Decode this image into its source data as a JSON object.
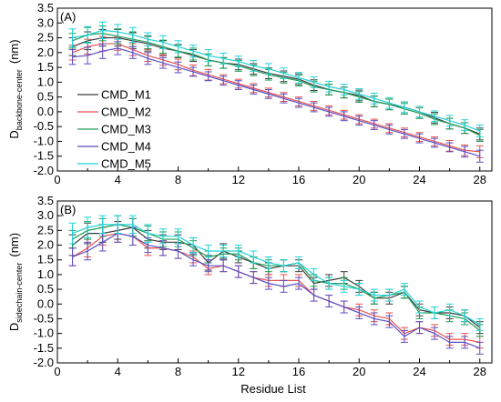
{
  "colors": {
    "CMD_M1": "#3a3a3a",
    "CMD_M2": "#e8524f",
    "CMD_M3": "#1f9e57",
    "CMD_M4": "#5a4fc4",
    "CMD_M5": "#22d2d8"
  },
  "chart_data": [
    {
      "type": "line",
      "panel_label": "(A)",
      "ylabel_main": "D",
      "ylabel_sub": "backbone-center",
      "ylabel_unit": "(nm)",
      "xlabel": "",
      "xlim": [
        0,
        28.8
      ],
      "ylim": [
        -2.0,
        3.5
      ],
      "xticks": [
        0,
        4,
        8,
        12,
        16,
        20,
        24,
        28
      ],
      "yticks": [
        -2.0,
        -1.5,
        -1.0,
        -0.5,
        0.0,
        0.5,
        1.0,
        1.5,
        2.0,
        2.5,
        3.0,
        3.5
      ],
      "legend_position": "left",
      "x": [
        1,
        2,
        3,
        4,
        5,
        6,
        7,
        8,
        9,
        10,
        11,
        12,
        13,
        14,
        15,
        16,
        17,
        18,
        19,
        20,
        21,
        22,
        23,
        24,
        25,
        26,
        27,
        28
      ],
      "series": [
        {
          "name": "CMD_M1",
          "values": [
            2.2,
            2.4,
            2.5,
            2.5,
            2.4,
            2.3,
            2.15,
            2.05,
            1.9,
            1.75,
            1.65,
            1.6,
            1.45,
            1.3,
            1.2,
            1.1,
            0.9,
            0.75,
            0.65,
            0.55,
            0.35,
            0.25,
            0.15,
            0.0,
            -0.2,
            -0.4,
            -0.55,
            -0.75
          ],
          "err": [
            0.3,
            0.3,
            0.28,
            0.28,
            0.27,
            0.25,
            0.25,
            0.22,
            0.2,
            0.2,
            0.18,
            0.18,
            0.18,
            0.18,
            0.18,
            0.18,
            0.18,
            0.18,
            0.18,
            0.18,
            0.18,
            0.18,
            0.18,
            0.18,
            0.18,
            0.18,
            0.18,
            0.2
          ]
        },
        {
          "name": "CMD_M2",
          "values": [
            2.0,
            2.2,
            2.3,
            2.3,
            2.1,
            1.9,
            1.75,
            1.6,
            1.4,
            1.25,
            1.1,
            0.95,
            0.8,
            0.65,
            0.5,
            0.35,
            0.2,
            0.05,
            -0.1,
            -0.25,
            -0.4,
            -0.55,
            -0.7,
            -0.85,
            -1.0,
            -1.15,
            -1.3,
            -1.35
          ],
          "err": [
            0.25,
            0.25,
            0.25,
            0.22,
            0.2,
            0.2,
            0.18,
            0.18,
            0.18,
            0.18,
            0.15,
            0.15,
            0.15,
            0.15,
            0.15,
            0.15,
            0.15,
            0.15,
            0.15,
            0.15,
            0.15,
            0.15,
            0.15,
            0.15,
            0.15,
            0.18,
            0.18,
            0.2
          ]
        },
        {
          "name": "CMD_M3",
          "values": [
            2.4,
            2.6,
            2.65,
            2.55,
            2.45,
            2.35,
            2.2,
            2.05,
            1.95,
            1.75,
            1.65,
            1.55,
            1.4,
            1.25,
            1.15,
            1.05,
            0.85,
            0.75,
            0.65,
            0.5,
            0.35,
            0.25,
            0.1,
            -0.05,
            -0.25,
            -0.4,
            -0.55,
            -0.8
          ],
          "err": [
            0.25,
            0.25,
            0.25,
            0.25,
            0.25,
            0.22,
            0.22,
            0.2,
            0.2,
            0.2,
            0.18,
            0.18,
            0.18,
            0.18,
            0.18,
            0.18,
            0.18,
            0.18,
            0.18,
            0.18,
            0.18,
            0.18,
            0.18,
            0.18,
            0.18,
            0.18,
            0.18,
            0.2
          ]
        },
        {
          "name": "CMD_M4",
          "values": [
            1.85,
            1.9,
            2.05,
            2.15,
            2.0,
            1.8,
            1.65,
            1.5,
            1.35,
            1.2,
            1.05,
            0.9,
            0.75,
            0.6,
            0.45,
            0.3,
            0.15,
            0.0,
            -0.15,
            -0.3,
            -0.45,
            -0.6,
            -0.75,
            -0.9,
            -1.05,
            -1.2,
            -1.35,
            -1.5
          ],
          "err": [
            0.25,
            0.28,
            0.25,
            0.22,
            0.2,
            0.2,
            0.18,
            0.18,
            0.15,
            0.15,
            0.15,
            0.15,
            0.15,
            0.15,
            0.15,
            0.15,
            0.15,
            0.15,
            0.15,
            0.15,
            0.15,
            0.15,
            0.15,
            0.15,
            0.15,
            0.15,
            0.18,
            0.2
          ]
        },
        {
          "name": "CMD_M5",
          "values": [
            2.5,
            2.6,
            2.75,
            2.7,
            2.6,
            2.45,
            2.35,
            2.2,
            2.05,
            1.9,
            1.8,
            1.7,
            1.55,
            1.45,
            1.3,
            1.15,
            1.0,
            0.85,
            0.75,
            0.6,
            0.45,
            0.3,
            0.15,
            0.0,
            -0.15,
            -0.3,
            -0.45,
            -0.65
          ],
          "err": [
            0.3,
            0.28,
            0.28,
            0.25,
            0.25,
            0.22,
            0.22,
            0.2,
            0.2,
            0.2,
            0.18,
            0.18,
            0.18,
            0.18,
            0.18,
            0.18,
            0.18,
            0.18,
            0.18,
            0.18,
            0.18,
            0.18,
            0.18,
            0.18,
            0.18,
            0.18,
            0.18,
            0.2
          ]
        }
      ]
    },
    {
      "type": "line",
      "panel_label": "(B)",
      "ylabel_main": "D",
      "ylabel_sub": "sidechain-center",
      "ylabel_unit": "(nm)",
      "xlabel": "Residue List",
      "xlim": [
        0,
        28.8
      ],
      "ylim": [
        -2.0,
        3.5
      ],
      "xticks": [
        0,
        4,
        8,
        12,
        16,
        20,
        24,
        28
      ],
      "yticks": [
        -2.0,
        -1.5,
        -1.0,
        -0.5,
        0.0,
        0.5,
        1.0,
        1.5,
        2.0,
        2.5,
        3.0,
        3.5
      ],
      "x": [
        1,
        2,
        3,
        4,
        5,
        6,
        7,
        8,
        9,
        10,
        11,
        12,
        13,
        14,
        15,
        16,
        17,
        18,
        19,
        20,
        21,
        22,
        23,
        24,
        25,
        26,
        27,
        28
      ],
      "series": [
        {
          "name": "CMD_M1",
          "values": [
            2.0,
            2.4,
            2.4,
            2.5,
            2.6,
            2.2,
            2.1,
            2.1,
            2.0,
            1.4,
            1.8,
            1.6,
            1.4,
            1.2,
            1.3,
            1.3,
            0.7,
            0.8,
            0.9,
            0.6,
            0.2,
            0.2,
            0.4,
            -0.2,
            -0.3,
            -0.3,
            -0.4,
            -0.8
          ],
          "err": [
            0.35,
            0.35,
            0.3,
            0.3,
            0.3,
            0.3,
            0.25,
            0.25,
            0.25,
            0.25,
            0.25,
            0.2,
            0.2,
            0.2,
            0.2,
            0.2,
            0.2,
            0.2,
            0.2,
            0.2,
            0.2,
            0.2,
            0.2,
            0.2,
            0.2,
            0.2,
            0.2,
            0.2
          ]
        },
        {
          "name": "CMD_M2",
          "values": [
            1.6,
            1.9,
            2.3,
            2.4,
            2.3,
            1.9,
            1.9,
            1.8,
            1.6,
            1.2,
            1.3,
            1.1,
            0.9,
            0.8,
            0.8,
            0.8,
            0.3,
            0.1,
            -0.1,
            -0.2,
            -0.4,
            -0.5,
            -1.0,
            -0.8,
            -0.9,
            -1.2,
            -1.2,
            -1.3
          ],
          "err": [
            0.3,
            0.3,
            0.3,
            0.3,
            0.3,
            0.25,
            0.25,
            0.25,
            0.2,
            0.2,
            0.2,
            0.2,
            0.2,
            0.2,
            0.2,
            0.2,
            0.2,
            0.2,
            0.2,
            0.2,
            0.2,
            0.2,
            0.2,
            0.2,
            0.2,
            0.2,
            0.2,
            0.2
          ]
        },
        {
          "name": "CMD_M3",
          "values": [
            2.2,
            2.5,
            2.6,
            2.7,
            2.6,
            2.4,
            2.2,
            2.2,
            1.9,
            1.6,
            1.7,
            1.7,
            1.4,
            1.3,
            1.3,
            1.4,
            0.8,
            0.7,
            0.7,
            0.5,
            0.2,
            0.3,
            0.4,
            -0.3,
            -0.3,
            -0.4,
            -0.5,
            -0.9
          ],
          "err": [
            0.3,
            0.3,
            0.3,
            0.3,
            0.3,
            0.25,
            0.25,
            0.25,
            0.25,
            0.2,
            0.2,
            0.2,
            0.2,
            0.2,
            0.2,
            0.2,
            0.2,
            0.2,
            0.2,
            0.2,
            0.2,
            0.2,
            0.2,
            0.2,
            0.2,
            0.2,
            0.2,
            0.2
          ]
        },
        {
          "name": "CMD_M4",
          "values": [
            1.6,
            1.8,
            2.1,
            2.4,
            2.3,
            2.0,
            1.9,
            1.8,
            1.5,
            1.3,
            1.3,
            1.1,
            0.9,
            0.7,
            0.6,
            0.7,
            0.3,
            0.1,
            -0.1,
            -0.3,
            -0.5,
            -0.6,
            -1.1,
            -0.8,
            -1.0,
            -1.3,
            -1.3,
            -1.5
          ],
          "err": [
            0.3,
            0.3,
            0.3,
            0.3,
            0.3,
            0.25,
            0.25,
            0.25,
            0.2,
            0.2,
            0.2,
            0.2,
            0.2,
            0.2,
            0.2,
            0.2,
            0.2,
            0.2,
            0.2,
            0.2,
            0.2,
            0.2,
            0.2,
            0.2,
            0.2,
            0.2,
            0.2,
            0.2
          ]
        },
        {
          "name": "CMD_M5",
          "values": [
            2.4,
            2.6,
            2.7,
            2.7,
            2.7,
            2.4,
            2.3,
            2.3,
            2.0,
            1.8,
            1.8,
            1.8,
            1.6,
            1.4,
            1.3,
            1.4,
            1.0,
            0.7,
            0.6,
            0.5,
            0.3,
            0.3,
            0.5,
            -0.1,
            -0.3,
            -0.2,
            -0.4,
            -0.7
          ],
          "err": [
            0.35,
            0.35,
            0.3,
            0.3,
            0.3,
            0.3,
            0.25,
            0.25,
            0.25,
            0.2,
            0.2,
            0.2,
            0.2,
            0.2,
            0.2,
            0.2,
            0.2,
            0.2,
            0.2,
            0.2,
            0.2,
            0.2,
            0.2,
            0.2,
            0.2,
            0.2,
            0.2,
            0.2
          ]
        }
      ]
    }
  ]
}
